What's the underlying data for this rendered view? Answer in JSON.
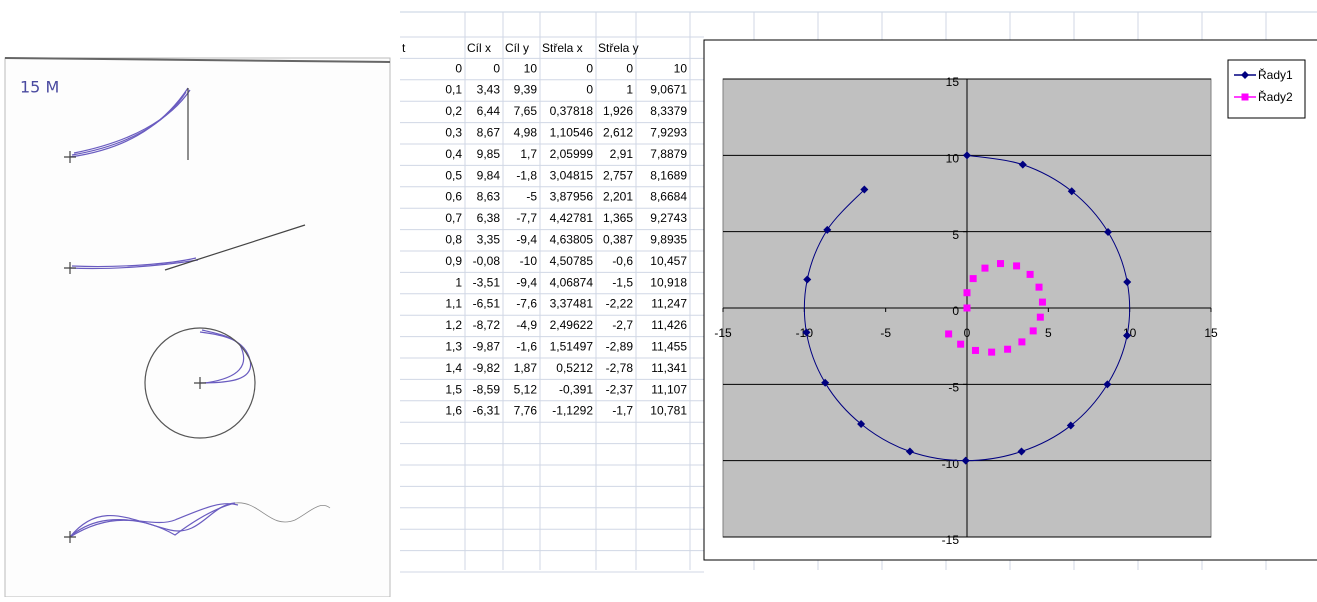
{
  "sheet_label": "15 M",
  "table": {
    "header": [
      "t",
      "Cíl x",
      "Cíl y",
      "Střela x",
      "Střela y"
    ],
    "rows": [
      [
        "0",
        "0",
        "10",
        "0",
        "0",
        "10"
      ],
      [
        "0,1",
        "3,43",
        "9,39",
        "0",
        "1",
        "9,0671"
      ],
      [
        "0,2",
        "6,44",
        "7,65",
        "0,37818",
        "1,926",
        "8,3379"
      ],
      [
        "0,3",
        "8,67",
        "4,98",
        "1,10546",
        "2,612",
        "7,9293"
      ],
      [
        "0,4",
        "9,85",
        "1,7",
        "2,05999",
        "2,91",
        "7,8879"
      ],
      [
        "0,5",
        "9,84",
        "-1,8",
        "3,04815",
        "2,757",
        "8,1689"
      ],
      [
        "0,6",
        "8,63",
        "-5",
        "3,87956",
        "2,201",
        "8,6684"
      ],
      [
        "0,7",
        "6,38",
        "-7,7",
        "4,42781",
        "1,365",
        "9,2743"
      ],
      [
        "0,8",
        "3,35",
        "-9,4",
        "4,63805",
        "0,387",
        "9,8935"
      ],
      [
        "0,9",
        "-0,08",
        "-10",
        "4,50785",
        "-0,6",
        "10,457"
      ],
      [
        "1",
        "-3,51",
        "-9,4",
        "4,06874",
        "-1,5",
        "10,918"
      ],
      [
        "1,1",
        "-6,51",
        "-7,6",
        "3,37481",
        "-2,22",
        "11,247"
      ],
      [
        "1,2",
        "-8,72",
        "-4,9",
        "2,49622",
        "-2,7",
        "11,426"
      ],
      [
        "1,3",
        "-9,87",
        "-1,6",
        "1,51497",
        "-2,89",
        "11,455"
      ],
      [
        "1,4",
        "-9,82",
        "1,87",
        "0,5212",
        "-2,78",
        "11,341"
      ],
      [
        "1,5",
        "-8,59",
        "5,12",
        "-0,391",
        "-2,37",
        "11,107"
      ],
      [
        "1,6",
        "-6,31",
        "7,76",
        "-1,1292",
        "-1,7",
        "10,781"
      ]
    ]
  },
  "chart_data": {
    "type": "scatter",
    "series": [
      {
        "name": "Řady1",
        "color": "#000080",
        "marker": "diamond",
        "line": true,
        "x": [
          0,
          3.43,
          6.44,
          8.67,
          9.85,
          9.84,
          8.63,
          6.38,
          3.35,
          -0.08,
          -3.51,
          -6.51,
          -8.72,
          -9.87,
          -9.82,
          -8.59,
          -6.31
        ],
        "values": [
          10,
          9.39,
          7.65,
          4.98,
          1.7,
          -1.8,
          -5,
          -7.7,
          -9.4,
          -10,
          -9.4,
          -7.6,
          -4.9,
          -1.6,
          1.87,
          5.12,
          7.76
        ]
      },
      {
        "name": "Řady2",
        "color": "#ff00ff",
        "marker": "square",
        "line": false,
        "x": [
          0,
          0,
          0.37818,
          1.10546,
          2.05999,
          3.04815,
          3.87956,
          4.42781,
          4.63805,
          4.50785,
          4.06874,
          3.37481,
          2.49622,
          1.51497,
          0.5212,
          -0.391,
          -1.1292
        ],
        "values": [
          0,
          1,
          1.926,
          2.612,
          2.91,
          2.757,
          2.201,
          1.365,
          0.387,
          -0.6,
          -1.5,
          -2.22,
          -2.7,
          -2.89,
          -2.78,
          -2.37,
          -1.7
        ]
      }
    ],
    "xlim": [
      -15,
      15
    ],
    "ylim": [
      -15,
      15
    ],
    "xticks": [
      -15,
      -10,
      -5,
      0,
      5,
      10,
      15
    ],
    "yticks": [
      -15,
      -10,
      -5,
      0,
      5,
      10,
      15
    ],
    "grid": true,
    "legend": "top-right",
    "plot_background": "#c0c0c0"
  }
}
